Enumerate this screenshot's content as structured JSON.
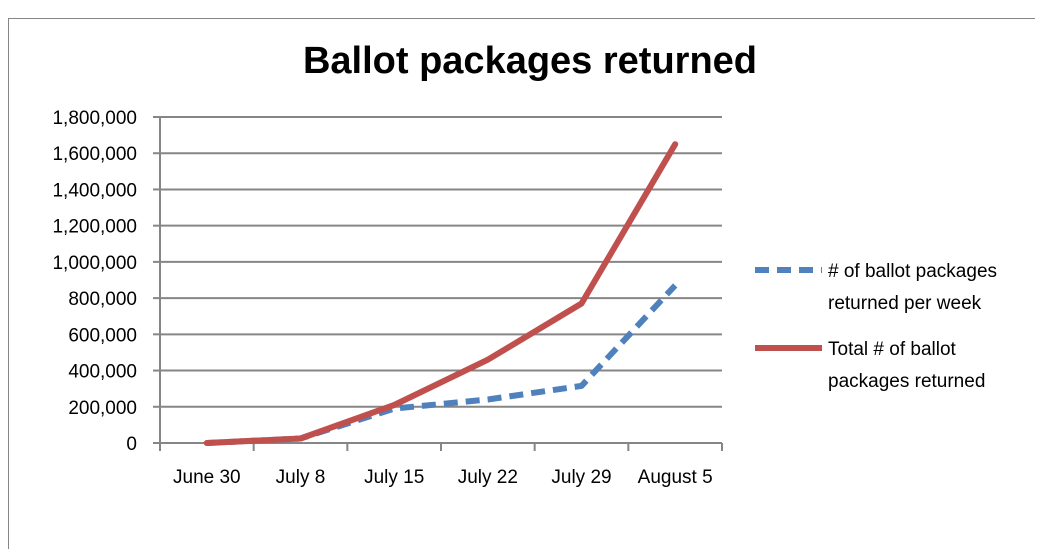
{
  "caption": "",
  "colors": {
    "series1": "#4F81BD",
    "series2": "#C0504D",
    "grid": "#868686"
  },
  "chart_data": {
    "type": "line",
    "title": "Ballot packages returned",
    "xlabel": "",
    "ylabel": "",
    "categories": [
      "June 30",
      "July 8",
      "July 15",
      "July 22",
      "July 29",
      "August 5"
    ],
    "ylim": [
      0,
      1800000
    ],
    "yticks": [
      "0",
      "200,000",
      "400,000",
      "600,000",
      "800,000",
      "1,000,000",
      "1,200,000",
      "1,400,000",
      "1,600,000",
      "1,800,000"
    ],
    "legend_position": "right",
    "grid": true,
    "series": [
      {
        "name": "# of ballot packages returned per week",
        "name_lines": [
          "# of ballot packages",
          "returned per week"
        ],
        "style": "dashed",
        "x": [
          0.5,
          1.5,
          2.5,
          3.5,
          4.5,
          5.5
        ],
        "values": [
          0,
          25000,
          190000,
          240000,
          315000,
          870000
        ]
      },
      {
        "name": "Total # of ballot packages returned",
        "name_lines": [
          "Total # of ballot",
          "packages returned"
        ],
        "style": "solid",
        "x": [
          0.5,
          1.5,
          2.5,
          3.5,
          4.5,
          5.5
        ],
        "values": [
          0,
          25000,
          210000,
          460000,
          770000,
          1650000
        ]
      }
    ]
  }
}
